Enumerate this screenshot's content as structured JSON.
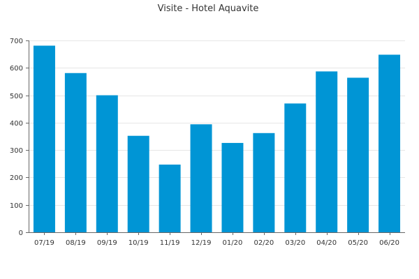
{
  "chart_data": {
    "type": "bar",
    "title": "Visite - Hotel Aquavite",
    "xlabel": "",
    "ylabel": "",
    "categories": [
      "07/19",
      "08/19",
      "09/19",
      "10/19",
      "11/19",
      "12/19",
      "01/20",
      "02/20",
      "03/20",
      "04/20",
      "05/20",
      "06/20"
    ],
    "values": [
      681,
      581,
      500,
      352,
      247,
      394,
      326,
      362,
      470,
      587,
      564,
      648
    ],
    "ylim": [
      0,
      700
    ],
    "yticks": [
      "0",
      "100",
      "200",
      "300",
      "400",
      "500",
      "600",
      "700"
    ],
    "grid": true,
    "legend": "none",
    "bar_color": "#0095d5"
  }
}
